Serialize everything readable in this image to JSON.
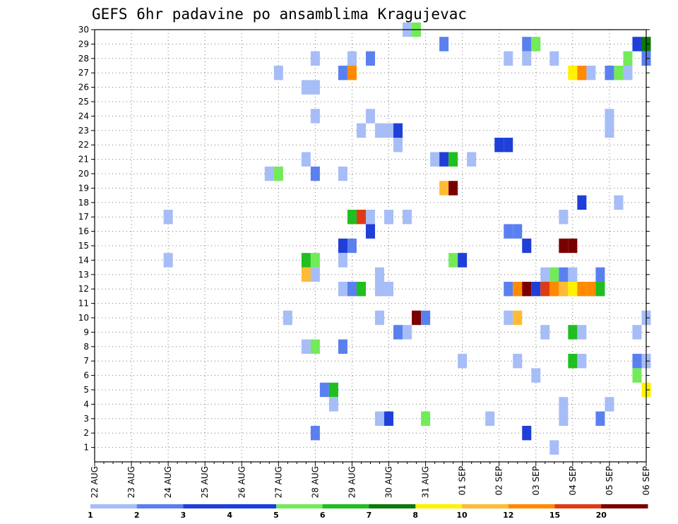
{
  "chart_data": {
    "type": "heatmap",
    "title": "GEFS 6hr padavine po ansamblima Kragujevac",
    "y_ticks": [
      1,
      2,
      3,
      4,
      5,
      6,
      7,
      8,
      9,
      10,
      11,
      12,
      13,
      14,
      15,
      16,
      17,
      18,
      19,
      20,
      21,
      22,
      23,
      24,
      25,
      26,
      27,
      28,
      29,
      30
    ],
    "x_ticks": [
      "22 AUG",
      "23 AUG",
      "24 AUG",
      "25 AUG",
      "26 AUG",
      "27 AUG",
      "28 AUG",
      "29 AUG",
      "30 AUG",
      "31 AUG",
      "01 SEP",
      "02 SEP",
      "03 SEP",
      "04 SEP",
      "05 SEP",
      "06 SEP"
    ],
    "x_range_steps": [
      0,
      60
    ],
    "y_range": [
      0,
      30
    ],
    "grid": true,
    "legend_position": "bottom",
    "legend": {
      "labels": [
        "1",
        "2",
        "3",
        "4",
        "5",
        "6",
        "7",
        "8",
        "10",
        "12",
        "15",
        "20"
      ],
      "colors": [
        "#a6bdf7",
        "#5a80f0",
        "#1f3fd8",
        "#1a3ee0",
        "#73ea59",
        "#1fbf1f",
        "#0a7a0a",
        "#fff200",
        "#ffbb33",
        "#ff8a00",
        "#e03a14",
        "#7a0000"
      ]
    },
    "cells": [
      [
        34,
        30,
        "#a6bdf7"
      ],
      [
        35,
        30,
        "#73ea59"
      ],
      [
        38,
        29,
        "#5a80f0"
      ],
      [
        47,
        29,
        "#5a80f0"
      ],
      [
        48,
        29,
        "#73ea59"
      ],
      [
        59,
        29,
        "#1f3fd8"
      ],
      [
        60,
        29,
        "#0a7a0a"
      ],
      [
        24,
        28,
        "#a6bdf7"
      ],
      [
        28,
        28,
        "#a6bdf7"
      ],
      [
        30,
        28,
        "#5a80f0"
      ],
      [
        45,
        28,
        "#a6bdf7"
      ],
      [
        47,
        28,
        "#a6bdf7"
      ],
      [
        50,
        28,
        "#a6bdf7"
      ],
      [
        58,
        28,
        "#73ea59"
      ],
      [
        60,
        28,
        "#5a80f0"
      ],
      [
        20,
        27,
        "#a6bdf7"
      ],
      [
        27,
        27,
        "#5a80f0"
      ],
      [
        28,
        27,
        "#ff8a00"
      ],
      [
        52,
        27,
        "#fff200"
      ],
      [
        53,
        27,
        "#ff8a00"
      ],
      [
        54,
        27,
        "#a6bdf7"
      ],
      [
        56,
        27,
        "#5a80f0"
      ],
      [
        57,
        27,
        "#73ea59"
      ],
      [
        58,
        27,
        "#a6bdf7"
      ],
      [
        23,
        26,
        "#a6bdf7"
      ],
      [
        24,
        26,
        "#a6bdf7"
      ],
      [
        24,
        24,
        "#a6bdf7"
      ],
      [
        30,
        24,
        "#a6bdf7"
      ],
      [
        56,
        24,
        "#a6bdf7"
      ],
      [
        29,
        23,
        "#a6bdf7"
      ],
      [
        31,
        23,
        "#a6bdf7"
      ],
      [
        32,
        23,
        "#a6bdf7"
      ],
      [
        33,
        23,
        "#1f3fd8"
      ],
      [
        56,
        23,
        "#a6bdf7"
      ],
      [
        33,
        22,
        "#a6bdf7"
      ],
      [
        44,
        22,
        "#1f3fd8"
      ],
      [
        45,
        22,
        "#1f3fd8"
      ],
      [
        23,
        21,
        "#a6bdf7"
      ],
      [
        37,
        21,
        "#a6bdf7"
      ],
      [
        38,
        21,
        "#1f3fd8"
      ],
      [
        39,
        21,
        "#1fbf1f"
      ],
      [
        41,
        21,
        "#a6bdf7"
      ],
      [
        19,
        20,
        "#a6bdf7"
      ],
      [
        20,
        20,
        "#73ea59"
      ],
      [
        24,
        20,
        "#5a80f0"
      ],
      [
        27,
        20,
        "#a6bdf7"
      ],
      [
        38,
        19,
        "#ffbb33"
      ],
      [
        39,
        19,
        "#7a0000"
      ],
      [
        53,
        18,
        "#1f3fd8"
      ],
      [
        57,
        18,
        "#a6bdf7"
      ],
      [
        8,
        17,
        "#a6bdf7"
      ],
      [
        28,
        17,
        "#1fbf1f"
      ],
      [
        29,
        17,
        "#e03a14"
      ],
      [
        30,
        17,
        "#a6bdf7"
      ],
      [
        32,
        17,
        "#a6bdf7"
      ],
      [
        34,
        17,
        "#a6bdf7"
      ],
      [
        51,
        17,
        "#a6bdf7"
      ],
      [
        30,
        16,
        "#1f3fd8"
      ],
      [
        45,
        16,
        "#5a80f0"
      ],
      [
        46,
        16,
        "#5a80f0"
      ],
      [
        27,
        15,
        "#1f3fd8"
      ],
      [
        28,
        15,
        "#5a80f0"
      ],
      [
        47,
        15,
        "#1f3fd8"
      ],
      [
        51,
        15,
        "#7a0000"
      ],
      [
        52,
        15,
        "#7a0000"
      ],
      [
        8,
        14,
        "#a6bdf7"
      ],
      [
        23,
        14,
        "#1fbf1f"
      ],
      [
        24,
        14,
        "#73ea59"
      ],
      [
        27,
        14,
        "#a6bdf7"
      ],
      [
        39,
        14,
        "#73ea59"
      ],
      [
        40,
        14,
        "#1f3fd8"
      ],
      [
        23,
        13,
        "#ffbb33"
      ],
      [
        24,
        13,
        "#a6bdf7"
      ],
      [
        31,
        13,
        "#a6bdf7"
      ],
      [
        49,
        13,
        "#a6bdf7"
      ],
      [
        50,
        13,
        "#73ea59"
      ],
      [
        51,
        13,
        "#5a80f0"
      ],
      [
        52,
        13,
        "#a6bdf7"
      ],
      [
        55,
        13,
        "#5a80f0"
      ],
      [
        27,
        12,
        "#a6bdf7"
      ],
      [
        28,
        12,
        "#5a80f0"
      ],
      [
        29,
        12,
        "#1fbf1f"
      ],
      [
        31,
        12,
        "#a6bdf7"
      ],
      [
        32,
        12,
        "#a6bdf7"
      ],
      [
        45,
        12,
        "#5a80f0"
      ],
      [
        46,
        12,
        "#ff8a00"
      ],
      [
        47,
        12,
        "#7a0000"
      ],
      [
        48,
        12,
        "#1f3fd8"
      ],
      [
        49,
        12,
        "#e03a14"
      ],
      [
        50,
        12,
        "#ff8a00"
      ],
      [
        51,
        12,
        "#ffbb33"
      ],
      [
        52,
        12,
        "#fff200"
      ],
      [
        53,
        12,
        "#ff8a00"
      ],
      [
        54,
        12,
        "#ff8a00"
      ],
      [
        55,
        12,
        "#1fbf1f"
      ],
      [
        21,
        10,
        "#a6bdf7"
      ],
      [
        31,
        10,
        "#a6bdf7"
      ],
      [
        35,
        10,
        "#7a0000"
      ],
      [
        36,
        10,
        "#5a80f0"
      ],
      [
        45,
        10,
        "#a6bdf7"
      ],
      [
        46,
        10,
        "#ffbb33"
      ],
      [
        60,
        10,
        "#a6bdf7"
      ],
      [
        33,
        9,
        "#5a80f0"
      ],
      [
        34,
        9,
        "#a6bdf7"
      ],
      [
        49,
        9,
        "#a6bdf7"
      ],
      [
        52,
        9,
        "#1fbf1f"
      ],
      [
        53,
        9,
        "#a6bdf7"
      ],
      [
        59,
        9,
        "#a6bdf7"
      ],
      [
        23,
        8,
        "#a6bdf7"
      ],
      [
        24,
        8,
        "#73ea59"
      ],
      [
        27,
        8,
        "#5a80f0"
      ],
      [
        40,
        7,
        "#a6bdf7"
      ],
      [
        46,
        7,
        "#a6bdf7"
      ],
      [
        52,
        7,
        "#1fbf1f"
      ],
      [
        53,
        7,
        "#a6bdf7"
      ],
      [
        59,
        7,
        "#5a80f0"
      ],
      [
        60,
        7,
        "#a6bdf7"
      ],
      [
        48,
        6,
        "#a6bdf7"
      ],
      [
        59,
        6,
        "#73ea59"
      ],
      [
        25,
        5,
        "#5a80f0"
      ],
      [
        26,
        5,
        "#1fbf1f"
      ],
      [
        60,
        5,
        "#fff200"
      ],
      [
        26,
        4,
        "#a6bdf7"
      ],
      [
        51,
        4,
        "#a6bdf7"
      ],
      [
        56,
        4,
        "#a6bdf7"
      ],
      [
        31,
        3,
        "#a6bdf7"
      ],
      [
        32,
        3,
        "#1f3fd8"
      ],
      [
        36,
        3,
        "#73ea59"
      ],
      [
        43,
        3,
        "#a6bdf7"
      ],
      [
        51,
        3,
        "#a6bdf7"
      ],
      [
        55,
        3,
        "#5a80f0"
      ],
      [
        24,
        2,
        "#5a80f0"
      ],
      [
        47,
        2,
        "#1f3fd8"
      ],
      [
        50,
        1,
        "#a6bdf7"
      ]
    ]
  }
}
